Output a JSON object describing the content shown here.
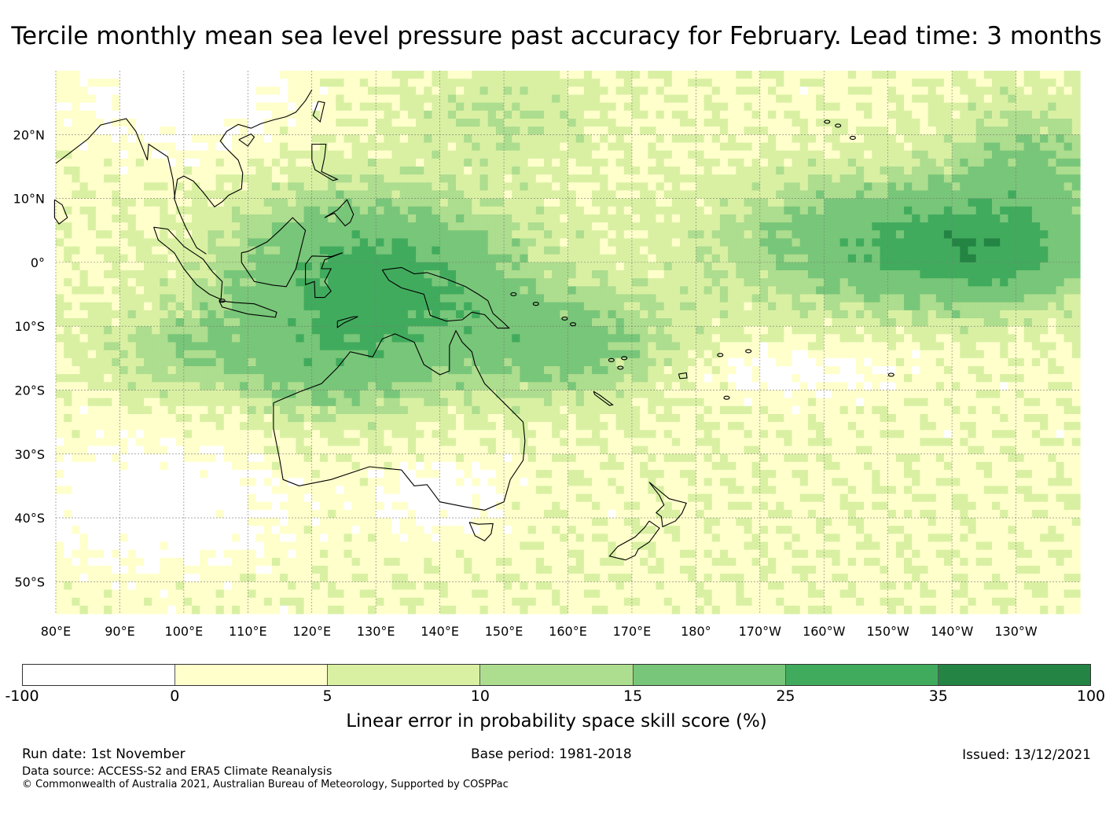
{
  "title": "Tercile monthly mean sea level pressure past accuracy for February. Lead time: 3 months",
  "map": {
    "longitude_labels": [
      "80°E",
      "90°E",
      "100°E",
      "110°E",
      "120°E",
      "130°E",
      "140°E",
      "150°E",
      "160°E",
      "170°E",
      "180°",
      "170°W",
      "160°W",
      "150°W",
      "140°W",
      "130°W"
    ],
    "latitude_labels": [
      "20°N",
      "10°N",
      "0°",
      "10°S",
      "20°S",
      "30°S",
      "40°S",
      "50°S"
    ],
    "extent": {
      "lon_min": 80,
      "lon_max": 240,
      "lat_min": -55,
      "lat_max": 30
    },
    "coastline_color": "#000000"
  },
  "colorbar": {
    "ticks": [
      "-100",
      "0",
      "5",
      "10",
      "15",
      "25",
      "35",
      "100"
    ],
    "bins": [
      {
        "from": -100,
        "to": 0,
        "color": "#ffffff"
      },
      {
        "from": 0,
        "to": 5,
        "color": "#ffffcc"
      },
      {
        "from": 5,
        "to": 10,
        "color": "#d9f0a3"
      },
      {
        "from": 10,
        "to": 15,
        "color": "#addd8e"
      },
      {
        "from": 15,
        "to": 25,
        "color": "#78c679"
      },
      {
        "from": 25,
        "to": 35,
        "color": "#41ab5d"
      },
      {
        "from": 35,
        "to": 100,
        "color": "#238443"
      }
    ],
    "title": "Linear error in probability space skill score (%)"
  },
  "footer": {
    "run_date": "Run date: 1st November",
    "base_period": "Base period: 1981-2018",
    "issued": "Issued: 13/12/2021",
    "data_source": "Data source: ACCESS-S2 and ERA5 Climate Reanalysis",
    "copyright": "© Commonwealth of Australia 2021, Australian Bureau of Meteorology, Supported by COSPPac"
  }
}
